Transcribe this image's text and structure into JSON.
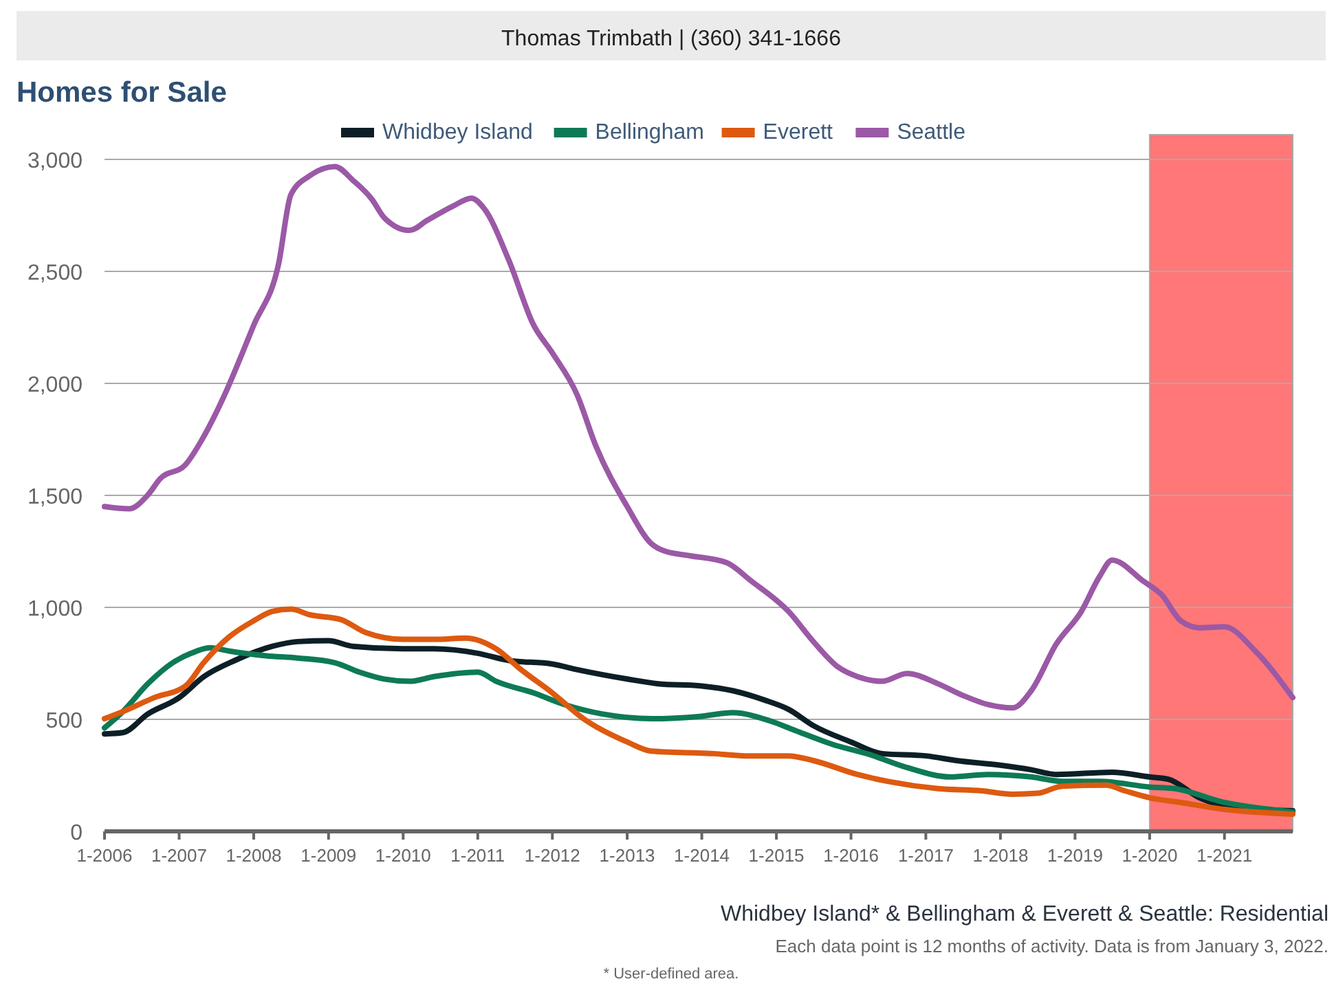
{
  "chart_data": {
    "type": "line",
    "title": "Homes for Sale",
    "annotations": [
      "Thomas Trimbath | (360) 341-1666",
      "Whidbey Island* & Bellingham & Everett & Seattle: Residential",
      "Each data point is 12 months of activity. Data is from January 3, 2022.",
      "* User-defined area."
    ],
    "xlim": [
      "2006-01",
      "2021-12"
    ],
    "xticks": [
      {
        "value": "2006-01",
        "label": "1-2006"
      },
      {
        "value": "2007-01",
        "label": "1-2007"
      },
      {
        "value": "2008-01",
        "label": "1-2008"
      },
      {
        "value": "2009-01",
        "label": "1-2009"
      },
      {
        "value": "2010-01",
        "label": "1-2010"
      },
      {
        "value": "2011-01",
        "label": "1-2011"
      },
      {
        "value": "2012-01",
        "label": "1-2012"
      },
      {
        "value": "2013-01",
        "label": "1-2013"
      },
      {
        "value": "2014-01",
        "label": "1-2014"
      },
      {
        "value": "2015-01",
        "label": "1-2015"
      },
      {
        "value": "2016-01",
        "label": "1-2016"
      },
      {
        "value": "2017-01",
        "label": "1-2017"
      },
      {
        "value": "2018-01",
        "label": "1-2018"
      },
      {
        "value": "2019-01",
        "label": "1-2019"
      },
      {
        "value": "2020-01",
        "label": "1-2020"
      },
      {
        "value": "2021-01",
        "label": "1-2021"
      }
    ],
    "ylim": [
      0,
      3000
    ],
    "yticks": [
      0,
      500,
      {
        "value": 1000,
        "label": "1,000"
      },
      {
        "value": 1500,
        "label": "1,500"
      },
      {
        "value": 2000,
        "label": "2,000"
      },
      {
        "value": 2500,
        "label": "2,500"
      },
      {
        "value": 3000,
        "label": "3,000"
      }
    ],
    "grid": "y",
    "legend": "top",
    "marker": "none",
    "line_style": "solid",
    "bands": [
      {
        "axis": "x",
        "from": "2020-01",
        "to": "2021-12",
        "color": "#ff7777"
      }
    ],
    "series": [
      {
        "name": "Whidbey Island",
        "color": "#0d1f26",
        "x": [
          "2006-01",
          "2006-04",
          "2006-08",
          "2007-01",
          "2007-05",
          "2007-10",
          "2008-04",
          "2008-08",
          "2009-01",
          "2009-05",
          "2010-01",
          "2010-06",
          "2011-01",
          "2011-06",
          "2012-01",
          "2012-05",
          "2013-01",
          "2013-06",
          "2014-01",
          "2014-06",
          "2014-11",
          "2015-03",
          "2015-07",
          "2016-01",
          "2016-06",
          "2017-01",
          "2017-06",
          "2018-01",
          "2018-06",
          "2018-10",
          "2019-07",
          "2020-01",
          "2020-04",
          "2020-09",
          "2021-05",
          "2021-12"
        ],
        "values": [
          435,
          441,
          524,
          597,
          690,
          763,
          826,
          847,
          851,
          826,
          815,
          815,
          795,
          763,
          747,
          722,
          680,
          659,
          649,
          628,
          587,
          545,
          472,
          399,
          347,
          337,
          316,
          295,
          275,
          254,
          264,
          243,
          233,
          150,
          98,
          92
        ]
      },
      {
        "name": "Bellingham",
        "color": "#0e7a55",
        "x": [
          "2006-01",
          "2006-04",
          "2006-08",
          "2006-12",
          "2007-03",
          "2007-06",
          "2007-09",
          "2008-03",
          "2008-08",
          "2009-02",
          "2009-06",
          "2009-10",
          "2010-02",
          "2010-06",
          "2011-01",
          "2011-04",
          "2011-10",
          "2012-03",
          "2012-09",
          "2013-05",
          "2014-01",
          "2014-06",
          "2014-12",
          "2015-04",
          "2015-10",
          "2016-04",
          "2016-10",
          "2017-05",
          "2017-11",
          "2018-06",
          "2018-11",
          "2019-05",
          "2020-01",
          "2020-05",
          "2021-01",
          "2021-12"
        ],
        "values": [
          462,
          535,
          659,
          753,
          795,
          820,
          805,
          784,
          774,
          753,
          711,
          680,
          670,
          691,
          711,
          670,
          618,
          566,
          524,
          503,
          514,
          530,
          493,
          451,
          389,
          343,
          285,
          243,
          254,
          243,
          223,
          223,
          198,
          191,
          129,
          87
        ]
      },
      {
        "name": "Everett",
        "color": "#dd5a10",
        "x": [
          "2006-01",
          "2006-04",
          "2006-09",
          "2007-02",
          "2007-05",
          "2007-09",
          "2008-01",
          "2008-04",
          "2008-07",
          "2008-10",
          "2009-03",
          "2009-07",
          "2010-01",
          "2010-06",
          "2010-11",
          "2011-04",
          "2011-08",
          "2012-01",
          "2012-06",
          "2013-01",
          "2013-05",
          "2014-03",
          "2014-08",
          "2015-03",
          "2015-07",
          "2016-02",
          "2016-07",
          "2017-03",
          "2017-10",
          "2018-03",
          "2018-07",
          "2018-11",
          "2019-06",
          "2019-09",
          "2020-01",
          "2020-06",
          "2021-01",
          "2021-12"
        ],
        "values": [
          503,
          535,
          597,
          649,
          753,
          867,
          940,
          982,
          992,
          967,
          946,
          888,
          857,
          857,
          863,
          815,
          722,
          618,
          503,
          399,
          358,
          347,
          337,
          337,
          316,
          254,
          223,
          191,
          181,
          166,
          170,
          202,
          206,
          181,
          150,
          129,
          98,
          77
        ]
      },
      {
        "name": "Seattle",
        "color": "#9b59a6",
        "x": [
          "2006-01",
          "2006-05",
          "2006-08",
          "2006-10",
          "2007-02",
          "2007-05",
          "2007-08",
          "2008-01",
          "2008-05",
          "2008-07",
          "2008-10",
          "2009-02",
          "2009-05",
          "2009-08",
          "2009-10",
          "2010-02",
          "2010-05",
          "2010-09",
          "2010-12",
          "2011-02",
          "2011-06",
          "2011-10",
          "2012-01",
          "2012-05",
          "2012-08",
          "2013-01",
          "2013-05",
          "2013-07",
          "2013-11",
          "2014-05",
          "2014-09",
          "2015-03",
          "2015-07",
          "2015-11",
          "2016-02",
          "2016-06",
          "2016-10",
          "2017-03",
          "2017-07",
          "2017-11",
          "2018-03",
          "2018-06",
          "2018-10",
          "2019-02",
          "2019-05",
          "2019-07",
          "2019-12",
          "2020-03",
          "2020-06",
          "2020-09",
          "2021-01",
          "2021-06",
          "2021-12"
        ],
        "values": [
          1450,
          1440,
          1502,
          1575,
          1637,
          1762,
          1928,
          2260,
          2531,
          2843,
          2927,
          2968,
          2906,
          2822,
          2739,
          2683,
          2729,
          2791,
          2827,
          2781,
          2552,
          2261,
          2136,
          1949,
          1720,
          1450,
          1283,
          1252,
          1231,
          1200,
          1117,
          982,
          847,
          732,
          691,
          670,
          705,
          659,
          607,
          566,
          551,
          628,
          836,
          982,
          1138,
          1211,
          1117,
          1055,
          940,
          909,
          913,
          805,
          597
        ]
      }
    ]
  }
}
